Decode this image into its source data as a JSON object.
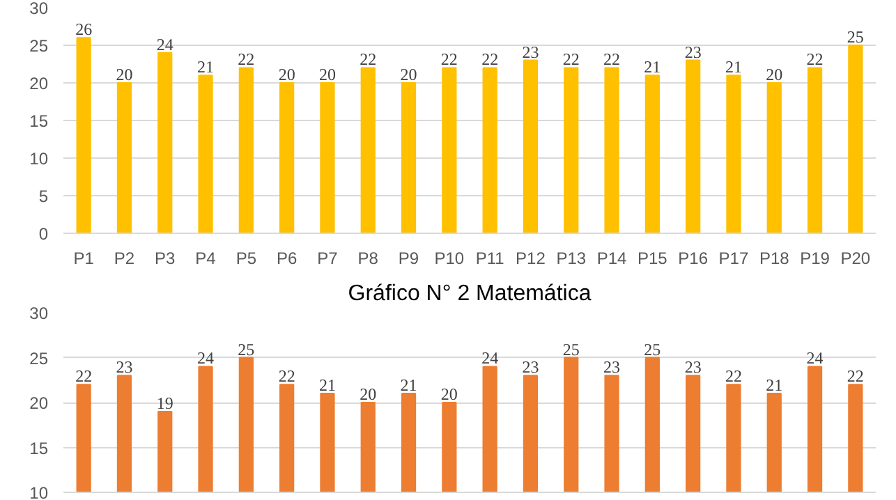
{
  "chart_data": [
    {
      "type": "bar",
      "categories": [
        "P1",
        "P2",
        "P3",
        "P4",
        "P5",
        "P6",
        "P7",
        "P8",
        "P9",
        "P10",
        "P11",
        "P12",
        "P13",
        "P14",
        "P15",
        "P16",
        "P17",
        "P18",
        "P19",
        "P20"
      ],
      "values": [
        26,
        20,
        24,
        21,
        22,
        20,
        20,
        22,
        20,
        22,
        22,
        23,
        22,
        22,
        21,
        23,
        21,
        20,
        22,
        25
      ],
      "color": "#ffc000",
      "ylim": [
        0,
        30
      ],
      "yticks": [
        0,
        5,
        10,
        15,
        20,
        25,
        30
      ],
      "grid": "y",
      "data_labels": true
    },
    {
      "type": "bar",
      "title": "Gráfico N° 2 Matemática",
      "categories": [
        null,
        null,
        null,
        null,
        null,
        null,
        null,
        null,
        null,
        null,
        null,
        null,
        null,
        null,
        null,
        null,
        null,
        null,
        null,
        null
      ],
      "values": [
        22,
        23,
        19,
        24,
        25,
        22,
        21,
        20,
        21,
        20,
        24,
        23,
        25,
        23,
        25,
        23,
        22,
        21,
        24,
        22
      ],
      "color": "#ed7d31",
      "ylim": [
        10,
        30
      ],
      "yticks": [
        10,
        15,
        20,
        25,
        30
      ],
      "grid": "y",
      "data_labels": true,
      "tick_labels": "y"
    }
  ]
}
